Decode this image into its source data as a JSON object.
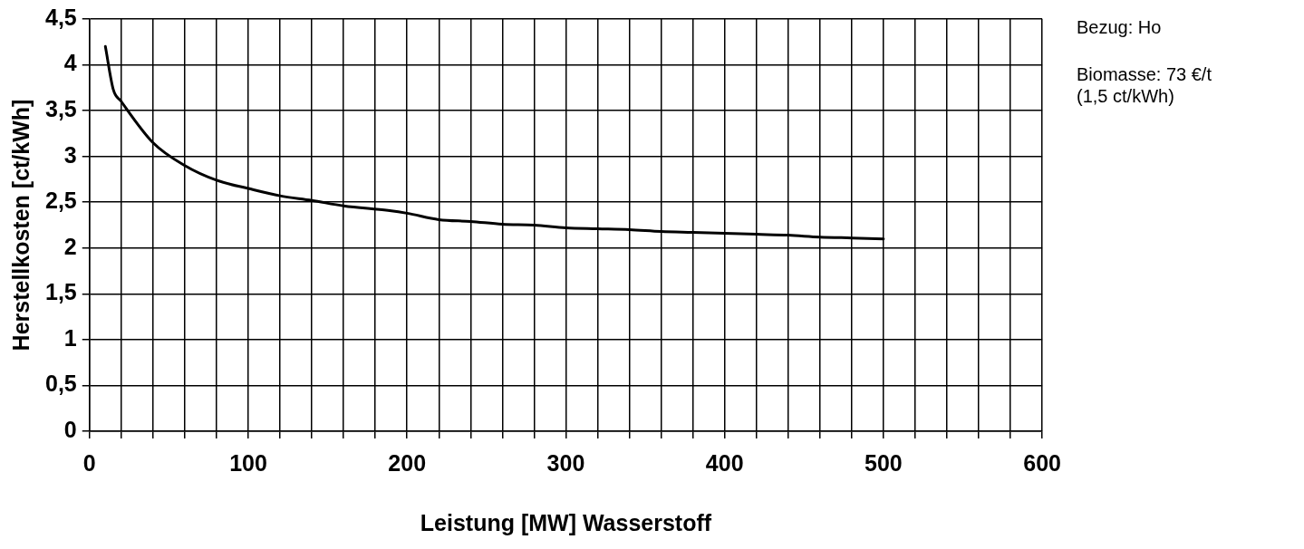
{
  "chart_data": {
    "type": "line",
    "xlabel": "Leistung [MW] Wasserstoff",
    "ylabel": "Herstellkosten [ct/kWh]",
    "x": [
      10,
      15,
      20,
      40,
      60,
      80,
      100,
      120,
      140,
      160,
      188,
      200,
      220,
      240,
      260,
      280,
      300,
      320,
      340,
      360,
      380,
      400,
      420,
      440,
      460,
      480,
      500
    ],
    "values": [
      4.2,
      3.73,
      3.6,
      3.15,
      2.9,
      2.74,
      2.65,
      2.57,
      2.52,
      2.46,
      2.41,
      2.38,
      2.31,
      2.29,
      2.26,
      2.25,
      2.22,
      2.21,
      2.2,
      2.18,
      2.17,
      2.16,
      2.15,
      2.14,
      2.12,
      2.11,
      2.1
    ],
    "color": "#000000",
    "marker": "none",
    "line_style": "solid",
    "grid": true,
    "xlim": [
      0,
      600
    ],
    "xticks": [
      0,
      {
        "value": 20,
        "label": null
      },
      {
        "value": 40,
        "label": null
      },
      {
        "value": 60,
        "label": null
      },
      {
        "value": 80,
        "label": null
      },
      100,
      {
        "value": 120,
        "label": null
      },
      {
        "value": 140,
        "label": null
      },
      {
        "value": 160,
        "label": null
      },
      {
        "value": 180,
        "label": null
      },
      200,
      {
        "value": 220,
        "label": null
      },
      {
        "value": 240,
        "label": null
      },
      {
        "value": 260,
        "label": null
      },
      {
        "value": 280,
        "label": null
      },
      300,
      {
        "value": 320,
        "label": null
      },
      {
        "value": 340,
        "label": null
      },
      {
        "value": 360,
        "label": null
      },
      {
        "value": 380,
        "label": null
      },
      400,
      {
        "value": 420,
        "label": null
      },
      {
        "value": 440,
        "label": null
      },
      {
        "value": 460,
        "label": null
      },
      {
        "value": 480,
        "label": null
      },
      500,
      {
        "value": 520,
        "label": null
      },
      {
        "value": 540,
        "label": null
      },
      {
        "value": 560,
        "label": null
      },
      {
        "value": 580,
        "label": null
      },
      600
    ],
    "ylim": [
      0,
      4.5
    ],
    "yticks": [
      0,
      {
        "value": 0.5,
        "label": "0,5"
      },
      1,
      {
        "value": 1.5,
        "label": "1,5"
      },
      2,
      {
        "value": 2.5,
        "label": "2,5"
      },
      3,
      {
        "value": 3.5,
        "label": "3,5"
      },
      4,
      {
        "value": 4.5,
        "label": "4,5"
      }
    ],
    "annotations": [
      "Bezug: Ho",
      "Biomasse: 73 €/t",
      "(1,5 ct/kWh)"
    ]
  }
}
